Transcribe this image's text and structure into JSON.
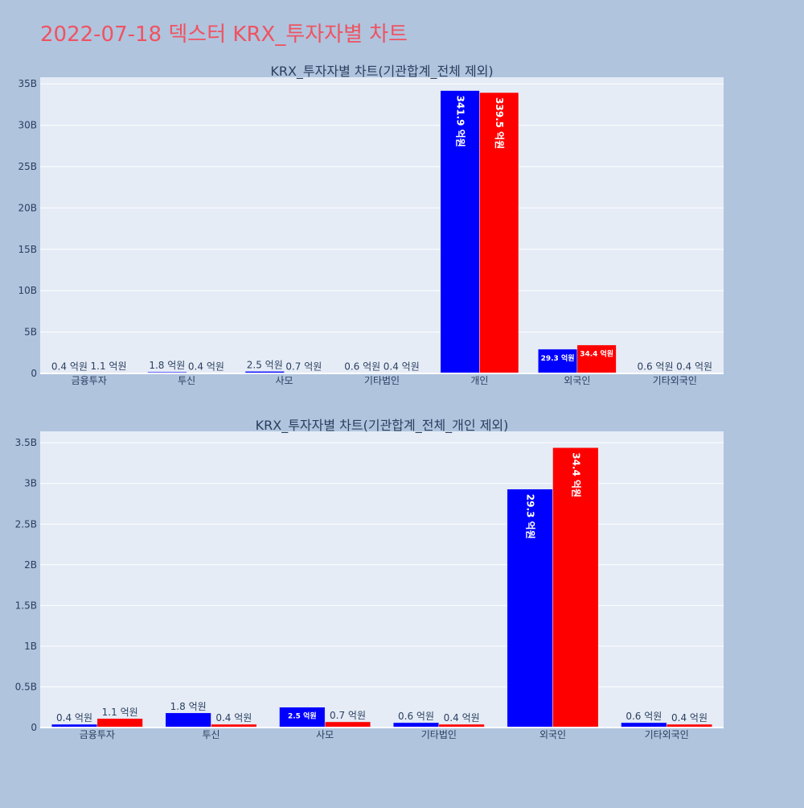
{
  "page": {
    "title": "2022-07-18 덱스터 KRX_투자자별 차트"
  },
  "colors": {
    "buy": "#0000ff",
    "sell": "#ff0000",
    "plot_bg": "#e5ecf6",
    "page_bg": "#b0c4de",
    "grid": "#ffffff",
    "text": "#2a3f5f"
  },
  "chart_data": [
    {
      "type": "bar",
      "title": "KRX_투자자별 차트(기관합계_전체 제외)",
      "categories": [
        "금융투자",
        "투신",
        "사모",
        "기타법인",
        "개인",
        "외국인",
        "기타외국인"
      ],
      "series": [
        {
          "color": "#0000ff",
          "values": [
            40000000,
            180000000,
            250000000,
            60000000,
            34190000000,
            2930000000,
            60000000
          ],
          "labels": [
            "0.4 억원",
            "1.8 억원",
            "2.5 억원",
            "0.6 억원",
            "341.9 억원",
            "29.3 억원",
            "0.6 억원"
          ]
        },
        {
          "color": "#ff0000",
          "values": [
            110000000,
            40000000,
            70000000,
            40000000,
            33950000000,
            3440000000,
            40000000
          ],
          "labels": [
            "1.1 억원",
            "0.4 억원",
            "0.7 억원",
            "0.4 억원",
            "339.5 억원",
            "34.4 억원",
            "0.4 억원"
          ]
        }
      ],
      "ylim": [
        0,
        35800000000
      ],
      "yticks": [
        0,
        5000000000,
        10000000000,
        15000000000,
        20000000000,
        25000000000,
        30000000000,
        35000000000
      ],
      "ytick_labels": [
        "0",
        "5B",
        "10B",
        "15B",
        "20B",
        "25B",
        "30B",
        "35B"
      ],
      "grid": true
    },
    {
      "type": "bar",
      "title": "KRX_투자자별 차트(기관합계_전체_개인 제외)",
      "categories": [
        "금융투자",
        "투신",
        "사모",
        "기타법인",
        "외국인",
        "기타외국인"
      ],
      "series": [
        {
          "color": "#0000ff",
          "values": [
            40000000,
            180000000,
            250000000,
            60000000,
            2930000000,
            60000000
          ],
          "labels": [
            "0.4 억원",
            "1.8 억원",
            "2.5 억원",
            "0.6 억원",
            "29.3 억원",
            "0.6 억원"
          ]
        },
        {
          "color": "#ff0000",
          "values": [
            110000000,
            40000000,
            70000000,
            40000000,
            3440000000,
            40000000
          ],
          "labels": [
            "1.1 억원",
            "0.4 억원",
            "0.7 억원",
            "0.4 억원",
            "34.4 억원",
            "0.4 억원"
          ]
        }
      ],
      "ylim": [
        0,
        3640000000
      ],
      "yticks": [
        0,
        500000000,
        1000000000,
        1500000000,
        2000000000,
        2500000000,
        3000000000,
        3500000000
      ],
      "ytick_labels": [
        "0",
        "0.5B",
        "1B",
        "1.5B",
        "2B",
        "2.5B",
        "3B",
        "3.5B"
      ],
      "grid": true
    }
  ]
}
